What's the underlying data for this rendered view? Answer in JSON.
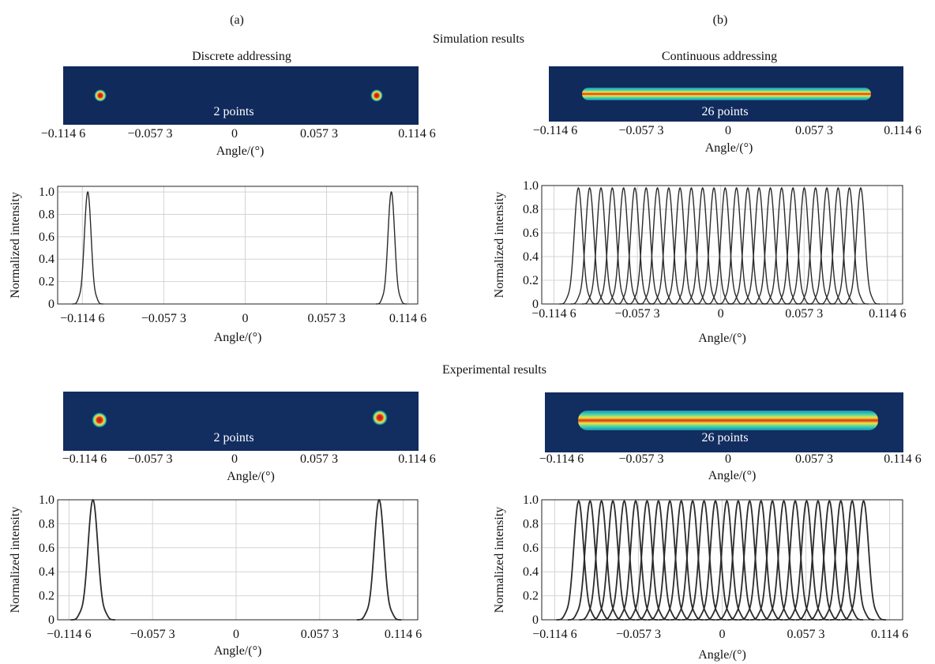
{
  "figure": {
    "panel_a_label": "(a)",
    "panel_b_label": "(b)",
    "section_simulation": "Simulation results",
    "section_experimental": "Experimental results",
    "column_a_title": "Discrete addressing",
    "column_b_title": "Continuous addressing"
  },
  "colors": {
    "spot_core": "#c8201c",
    "spot_mid": "#f2e23a",
    "spot_edge": "#2cc8b6",
    "beam_background": "#102a5c",
    "curve": "#2b2b2b",
    "grid": "#d4d4d4"
  },
  "chart_data": [
    {
      "type": "line",
      "id": "sim-discrete-profile",
      "section": "Simulation results",
      "beam_image_label": "2 points",
      "xlabel": "Angle/(°)",
      "ylabel": "Normalized intensity",
      "xticks": [
        -0.1146,
        -0.0573,
        0,
        0.0573,
        0.1146
      ],
      "xtick_labels": [
        "−0.114 6",
        "−0.057 3",
        "0",
        "0.057 3",
        "0.114 6"
      ],
      "yticks": [
        0,
        0.2,
        0.4,
        0.6,
        0.8,
        1.0
      ],
      "ytick_labels": [
        "0",
        "0.2",
        "0.4",
        "0.6",
        "0.8",
        "1.0"
      ],
      "xlim": [
        -0.132,
        0.1215
      ],
      "ylim": [
        0,
        1.05
      ],
      "grid": true,
      "peak_count": 2,
      "peaks": [
        -0.1108,
        0.1029
      ],
      "peak_width": 0.0024,
      "peak_height": 1.0
    },
    {
      "type": "line",
      "id": "sim-continuous-profile",
      "section": "Simulation results",
      "beam_image_label": "26 points",
      "xlabel": "Angle/(°)",
      "ylabel": "Normalized intensity",
      "xticks": [
        -0.1146,
        -0.0573,
        0,
        0.0573,
        0.1146
      ],
      "xtick_labels": [
        "−0.114 6",
        "−0.057 3",
        "0",
        "0.057 3",
        "0.114 6"
      ],
      "yticks": [
        0,
        0.2,
        0.4,
        0.6,
        0.8,
        1.0
      ],
      "ytick_labels": [
        "0",
        "0.2",
        "0.4",
        "0.6",
        "0.8",
        "1.0"
      ],
      "xlim": [
        -0.123,
        0.125
      ],
      "ylim": [
        0,
        1.0
      ],
      "grid": true,
      "peak_count": 26,
      "peak_range": [
        -0.0978,
        0.0962
      ],
      "peak_width": 0.0029,
      "peak_height": 0.98
    },
    {
      "type": "line",
      "id": "exp-discrete-profile",
      "section": "Experimental results",
      "beam_image_label": "2 points",
      "xlabel": "Angle/(°)",
      "ylabel": "Normalized intensity",
      "xticks": [
        -0.1146,
        -0.0573,
        0,
        0.0573,
        0.1146
      ],
      "xtick_labels": [
        "−0.114 6",
        "−0.057 3",
        "0",
        "0.057 3",
        "0.114 6"
      ],
      "yticks": [
        0,
        0.2,
        0.4,
        0.6,
        0.8,
        1.0
      ],
      "ytick_labels": [
        "0",
        "0.2",
        "0.4",
        "0.6",
        "0.8",
        "1.0"
      ],
      "xlim": [
        -0.1224,
        0.1246
      ],
      "ylim": [
        0,
        1.0
      ],
      "grid": true,
      "peak_count": 2,
      "peaks": [
        -0.0982,
        0.0981
      ],
      "peak_width": 0.0034,
      "peak_height": 1.0
    },
    {
      "type": "line",
      "id": "exp-continuous-profile",
      "section": "Experimental results",
      "beam_image_label": "26 points",
      "xlabel": "Angle/(°)",
      "ylabel": "Normalized intensity",
      "xticks": [
        -0.1146,
        -0.0573,
        0,
        0.0573,
        0.1146
      ],
      "xtick_labels": [
        "−0.114 6",
        "−0.057 3",
        "0",
        "0.057 3",
        "0.114 6"
      ],
      "yticks": [
        0,
        0.2,
        0.4,
        0.6,
        0.8,
        1.0
      ],
      "ytick_labels": [
        "0",
        "0.2",
        "0.4",
        "0.6",
        "0.8",
        "1.0"
      ],
      "xlim": [
        -0.1235,
        0.1235
      ],
      "ylim": [
        0,
        1.0
      ],
      "grid": true,
      "peak_count": 26,
      "peak_range": [
        -0.0982,
        0.0968
      ],
      "peak_width": 0.0034,
      "peak_height": 0.99
    }
  ]
}
